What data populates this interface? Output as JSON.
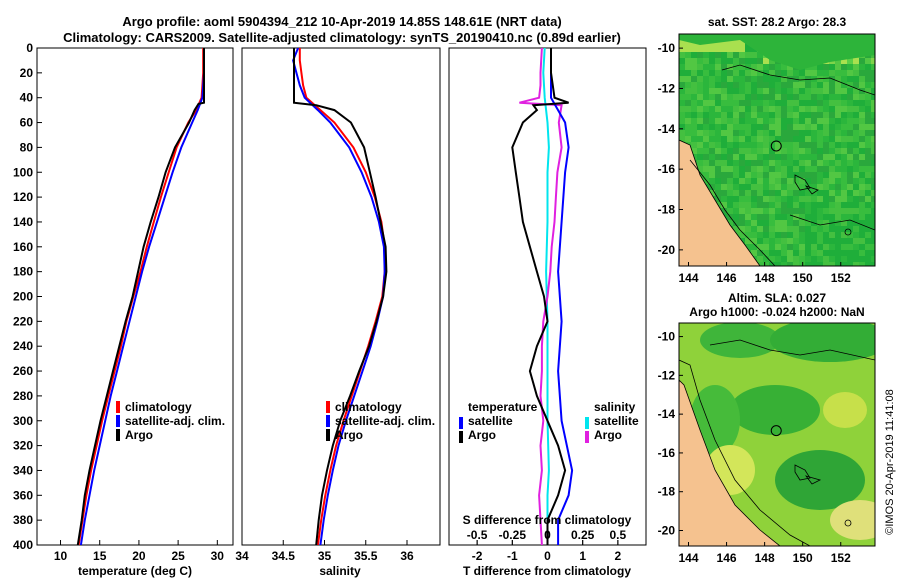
{
  "header": {
    "line1": "Argo profile: aoml 5904394_212 10-Apr-2019 14.85S 148.61E (NRT data)",
    "line2": "Climatology: CARS2009. Satellite-adjusted climatology: synTS_20190410.nc (0.89d earlier)"
  },
  "footer": {
    "credit": "©IMOS 20-Apr-2019 11:41:08"
  },
  "colors": {
    "climatology": "#ff0000",
    "satellite": "#0000ff",
    "argo": "#000000",
    "sat_s": "#00e5ee",
    "argo_s": "#e020e0",
    "land": "#f5c28f"
  },
  "chart_data": [
    {
      "type": "line",
      "id": "temp",
      "xlabel": "temperature (deg C)",
      "ylabel": "",
      "xlim": [
        7,
        32
      ],
      "ylim": [
        400,
        0
      ],
      "xticks": [
        10,
        15,
        20,
        25,
        30
      ],
      "yticks": [
        0,
        20,
        40,
        60,
        80,
        100,
        120,
        140,
        160,
        180,
        200,
        220,
        240,
        260,
        280,
        300,
        320,
        340,
        360,
        380,
        400
      ],
      "legend": [
        "climatology",
        "satellite-adj. clim.",
        "Argo"
      ],
      "series": [
        {
          "name": "climatology",
          "color": "#ff0000",
          "depth": [
            0,
            20,
            40,
            50,
            60,
            80,
            100,
            120,
            140,
            160,
            180,
            200,
            220,
            240,
            260,
            280,
            300,
            320,
            340,
            360,
            380,
            400
          ],
          "values": [
            28.2,
            28.2,
            28.0,
            27.3,
            26.3,
            24.8,
            23.8,
            22.8,
            21.9,
            21.0,
            20.2,
            19.3,
            18.4,
            17.7,
            16.9,
            16.1,
            15.3,
            14.6,
            13.9,
            13.3,
            12.8,
            12.3
          ]
        },
        {
          "name": "satellite-adj. clim.",
          "color": "#0000ff",
          "depth": [
            0,
            20,
            40,
            50,
            60,
            80,
            100,
            120,
            140,
            160,
            180,
            200,
            220,
            240,
            260,
            280,
            300,
            320,
            340,
            360,
            380,
            400
          ],
          "values": [
            28.3,
            28.3,
            28.1,
            27.5,
            26.8,
            25.4,
            24.3,
            23.3,
            22.3,
            21.3,
            20.4,
            19.6,
            18.8,
            18.0,
            17.2,
            16.4,
            15.7,
            15.0,
            14.3,
            13.7,
            13.1,
            12.6
          ]
        },
        {
          "name": "Argo",
          "color": "#000000",
          "depth": [
            0,
            20,
            40,
            44,
            45,
            50,
            60,
            80,
            100,
            120,
            140,
            160,
            180,
            200,
            220,
            240,
            260,
            280,
            300,
            320,
            340,
            360,
            380,
            400
          ],
          "values": [
            28.3,
            28.3,
            28.3,
            28.3,
            27.6,
            27.1,
            26.4,
            24.6,
            23.4,
            22.5,
            21.5,
            20.6,
            19.9,
            19.2,
            18.3,
            17.5,
            16.7,
            15.9,
            15.1,
            14.4,
            13.7,
            13.1,
            12.7,
            12.2
          ]
        }
      ]
    },
    {
      "type": "line",
      "id": "salt",
      "xlabel": "salinity",
      "xlim": [
        34,
        36.4
      ],
      "ylim": [
        400,
        0
      ],
      "xticks": [
        34,
        34.5,
        35,
        35.5,
        36
      ],
      "xticklabels": [
        "34",
        "34.5",
        "35",
        "35.5",
        "36"
      ],
      "legend": [
        "climatology",
        "satellite-adj. clim.",
        "Argo"
      ],
      "series": [
        {
          "name": "climatology",
          "color": "#ff0000",
          "depth": [
            0,
            10,
            20,
            30,
            40,
            50,
            60,
            80,
            100,
            120,
            140,
            160,
            180,
            200,
            220,
            240,
            260,
            280,
            300,
            320,
            340,
            360,
            380,
            400
          ],
          "values": [
            34.7,
            34.7,
            34.72,
            34.74,
            34.78,
            34.95,
            35.12,
            35.35,
            35.5,
            35.61,
            35.69,
            35.73,
            35.73,
            35.7,
            35.62,
            35.53,
            35.43,
            35.33,
            35.23,
            35.14,
            35.07,
            35.01,
            34.96,
            34.92
          ]
        },
        {
          "name": "satellite-adj. clim.",
          "color": "#0000ff",
          "depth": [
            0,
            10,
            20,
            30,
            40,
            50,
            60,
            80,
            100,
            120,
            140,
            160,
            180,
            200,
            220,
            240,
            260,
            280,
            300,
            320,
            340,
            360,
            380,
            400
          ],
          "values": [
            34.68,
            34.62,
            34.66,
            34.7,
            34.76,
            34.92,
            35.07,
            35.3,
            35.45,
            35.57,
            35.66,
            35.72,
            35.73,
            35.71,
            35.64,
            35.56,
            35.46,
            35.36,
            35.26,
            35.17,
            35.1,
            35.04,
            34.99,
            34.95
          ]
        },
        {
          "name": "Argo",
          "color": "#000000",
          "depth": [
            0,
            10,
            20,
            30,
            40,
            44,
            46,
            50,
            60,
            80,
            100,
            120,
            140,
            160,
            180,
            200,
            220,
            240,
            260,
            280,
            300,
            320,
            340,
            360,
            380,
            400
          ],
          "values": [
            34.63,
            34.63,
            34.63,
            34.63,
            34.63,
            34.63,
            34.9,
            35.12,
            35.32,
            35.48,
            35.55,
            35.62,
            35.68,
            35.74,
            35.75,
            35.71,
            35.63,
            35.54,
            35.42,
            35.31,
            35.19,
            35.1,
            35.03,
            34.97,
            34.93,
            34.9
          ]
        }
      ]
    },
    {
      "type": "line",
      "id": "diff",
      "xlabel": "T difference from climatology",
      "xlabel2": "S difference from climatology",
      "xlim": [
        -2.8,
        2.8
      ],
      "ylim": [
        400,
        0
      ],
      "xticks": [
        -2,
        -1,
        0,
        1,
        2
      ],
      "xticks2": [
        -0.5,
        -0.25,
        0,
        0.25,
        0.5
      ],
      "xticklabels2": [
        "-0.5",
        "-0.25",
        "0",
        "0.25",
        "0.5"
      ],
      "legend_temperature": [
        "temperature",
        "satellite",
        "Argo"
      ],
      "legend_salinity": [
        "salinity",
        "satellite",
        "Argo"
      ],
      "series": [
        {
          "name": "T satellite",
          "color": "#0000ff",
          "depth": [
            0,
            20,
            40,
            60,
            80,
            100,
            140,
            180,
            220,
            260,
            300,
            340,
            360,
            380,
            400
          ],
          "values": [
            0.1,
            0.1,
            0.1,
            0.5,
            0.6,
            0.5,
            0.4,
            0.3,
            0.4,
            0.3,
            0.4,
            0.7,
            0.6,
            0.3,
            0.3
          ]
        },
        {
          "name": "T Argo",
          "color": "#000000",
          "depth": [
            0,
            20,
            40,
            44,
            46,
            50,
            60,
            80,
            100,
            120,
            140,
            160,
            180,
            200,
            220,
            240,
            260,
            280,
            300,
            320,
            340,
            360,
            380,
            400
          ],
          "values": [
            0.1,
            0.1,
            0.2,
            0.6,
            -0.4,
            -0.3,
            -0.7,
            -1.0,
            -0.9,
            -0.8,
            -0.7,
            -0.5,
            -0.3,
            -0.1,
            0.0,
            -0.3,
            -0.5,
            -0.3,
            0.0,
            0.3,
            0.5,
            0.3,
            0.0,
            0.0
          ]
        },
        {
          "name": "S satellite",
          "color": "#00e5ee",
          "depth": [
            0,
            20,
            40,
            60,
            80,
            100,
            140,
            180,
            220,
            260,
            300,
            340,
            360,
            380,
            400
          ],
          "values": [
            -0.02,
            -0.03,
            -0.02,
            0.0,
            0.01,
            0.0,
            0.0,
            -0.01,
            0.0,
            0.0,
            0.0,
            0.01,
            0.0,
            0.0,
            0.0
          ]
        },
        {
          "name": "S Argo",
          "color": "#e020e0",
          "depth": [
            0,
            20,
            30,
            40,
            44,
            46,
            60,
            80,
            100,
            120,
            140,
            160,
            180,
            200,
            220,
            240,
            260,
            280,
            300,
            320,
            340,
            360,
            380,
            400
          ],
          "values": [
            -0.04,
            -0.05,
            -0.05,
            -0.06,
            -0.2,
            0.1,
            0.08,
            0.1,
            0.07,
            0.06,
            0.05,
            0.03,
            0.02,
            0.0,
            -0.03,
            -0.04,
            -0.04,
            -0.05,
            -0.03,
            -0.05,
            -0.04,
            -0.06,
            -0.05,
            -0.04
          ]
        }
      ]
    },
    {
      "type": "heatmap",
      "id": "sst_map",
      "title": "sat. SST: 28.2 Argo: 28.3",
      "xlim": [
        143.5,
        153.8
      ],
      "ylim": [
        -20.8,
        -9.3
      ],
      "xticks": [
        144,
        146,
        148,
        150,
        152
      ],
      "yticks": [
        -10,
        -12,
        -14,
        -16,
        -18,
        -20
      ],
      "argo_position": [
        148.61,
        -14.85
      ]
    },
    {
      "type": "heatmap",
      "id": "sla_map",
      "title": "Altim. SLA: 0.027",
      "subtitle": "Argo h1000: -0.024 h2000: NaN",
      "xlim": [
        143.5,
        153.8
      ],
      "ylim": [
        -20.8,
        -9.3
      ],
      "xticks": [
        144,
        146,
        148,
        150,
        152
      ],
      "yticks": [
        -10,
        -12,
        -14,
        -16,
        -18,
        -20
      ],
      "argo_position": [
        148.61,
        -14.85
      ]
    }
  ]
}
